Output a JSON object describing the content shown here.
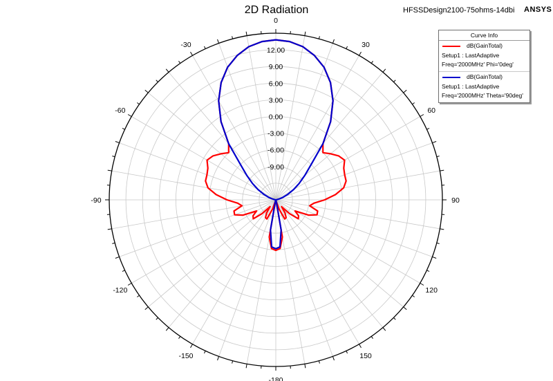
{
  "header": {
    "title": "2D Radiation",
    "project": "HFSSDesign2100-75ohms-14dbi",
    "brand": "ANSYS"
  },
  "legend": {
    "title": "Curve Info",
    "entries": [
      {
        "name": "dB(GainTotal)",
        "line1": "Setup1 : LastAdaptive",
        "line2": "Freq='2000MHz' Phi='0deg'",
        "color": "#ff0000"
      },
      {
        "name": "dB(GainTotal)",
        "line1": "Setup1 : LastAdaptive",
        "line2": "Freq='2000MHz' Theta='90deg'",
        "color": "#0000cc"
      }
    ]
  },
  "chart_data": {
    "type": "polar",
    "title": "2D Radiation",
    "r_range": [
      -15,
      15
    ],
    "radial_ticks": [
      12,
      9,
      6,
      3,
      0,
      -3,
      -6,
      -9
    ],
    "radial_tick_labels": [
      "12.00",
      "9.00",
      "6.00",
      "3.00",
      "0.00",
      "-3.00",
      "-6.00",
      "-9.00"
    ],
    "angle_ticks": [
      0,
      30,
      60,
      90,
      120,
      150,
      -180,
      -150,
      -120,
      -90,
      -60,
      -30
    ],
    "angle_tick_labels": [
      "0",
      "30",
      "60",
      "90",
      "120",
      "150",
      "-180",
      "-150",
      "-120",
      "-90",
      "-60",
      "-30"
    ],
    "grid": true,
    "angle_zero": "top",
    "angle_direction": "clockwise",
    "legend_position": "top-right",
    "series": [
      {
        "name": "dB(GainTotal) Phi='0deg'",
        "color": "#ff0000",
        "theta": [
          0,
          5,
          10,
          15,
          20,
          25,
          30,
          35,
          40,
          45,
          50,
          55,
          60,
          65,
          70,
          75,
          80,
          85,
          90,
          95,
          100,
          105,
          110,
          115,
          120,
          125,
          130,
          135,
          140,
          145,
          150,
          155,
          160,
          165,
          170,
          175,
          180
        ],
        "gain_db": [
          13.8,
          13.6,
          13.0,
          11.9,
          10.4,
          8.3,
          5.6,
          2.2,
          -1.8,
          -3.0,
          -2.1,
          -1.2,
          -0.7,
          -1.5,
          -1.8,
          -1.9,
          -2.6,
          -4.2,
          -6.2,
          -8.1,
          -8.8,
          -7.2,
          -7.1,
          -8.5,
          -11.0,
          -10.0,
          -9.7,
          -11.5,
          -13.4,
          -12.1,
          -11.3,
          -11.2,
          -13.2,
          -14.8,
          -8.2,
          -6.2,
          -5.9
        ]
      },
      {
        "name": "dB(GainTotal) Theta='90deg'",
        "color": "#0000cc",
        "theta": [
          0,
          5,
          10,
          15,
          20,
          25,
          30,
          35,
          40,
          45,
          50,
          55,
          60,
          65,
          70,
          75,
          80,
          85,
          90,
          95,
          100,
          105,
          110,
          115,
          120,
          125,
          130,
          135,
          140,
          145,
          150,
          155,
          160,
          165,
          170,
          175,
          180
        ],
        "gain_db": [
          13.8,
          13.6,
          13.0,
          11.9,
          10.4,
          8.3,
          5.6,
          2.2,
          -1.8,
          -6.0,
          -8.2,
          -9.9,
          -11.3,
          -12.6,
          -13.6,
          -14.3,
          -14.8,
          -15.0,
          -15.0,
          -15.0,
          -15.0,
          -15.0,
          -15.0,
          -15.0,
          -15.0,
          -15.0,
          -15.0,
          -15.0,
          -15.0,
          -15.0,
          -15.0,
          -15.0,
          -15.0,
          -14.5,
          -9.5,
          -6.5,
          -6.2
        ]
      }
    ]
  }
}
